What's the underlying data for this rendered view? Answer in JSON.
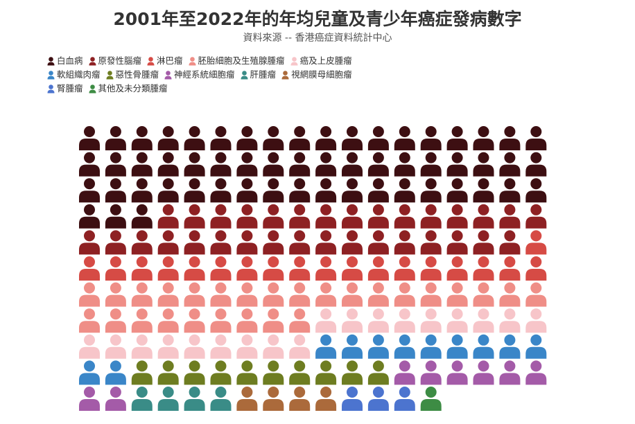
{
  "title": "2001年至2022年的年均兒童及青少年癌症發病數字",
  "subtitle": "資料來源 -- 香港癌症資料統計中心",
  "chart_data": {
    "type": "waffle",
    "legend_position": "top-left",
    "columns": 18,
    "series": [
      {
        "name": "白血病",
        "value": 57,
        "color": "#3d0f12"
      },
      {
        "name": "原發性腦瘤",
        "value": 32,
        "color": "#8e2123"
      },
      {
        "name": "淋巴瘤",
        "value": 19,
        "color": "#d64b45"
      },
      {
        "name": "胚胎細胞及生殖腺腫瘤",
        "value": 27,
        "color": "#ef8e87"
      },
      {
        "name": "癌及上皮腫瘤",
        "value": 18,
        "color": "#f7c5c9"
      },
      {
        "name": "軟組織肉瘤",
        "value": 11,
        "color": "#3a86c8"
      },
      {
        "name": "惡性骨腫瘤",
        "value": 10,
        "color": "#6e7d21"
      },
      {
        "name": "神經系統細胞瘤",
        "value": 8,
        "color": "#a45ba8"
      },
      {
        "name": "肝腫瘤",
        "value": 4,
        "color": "#3a8c87"
      },
      {
        "name": "視網膜母細胞瘤",
        "value": 4,
        "color": "#ab6a3b"
      },
      {
        "name": "腎腫瘤",
        "value": 3,
        "color": "#4c74cf"
      },
      {
        "name": "其他及未分類腫瘤",
        "value": 1,
        "color": "#3d8c44"
      }
    ]
  }
}
